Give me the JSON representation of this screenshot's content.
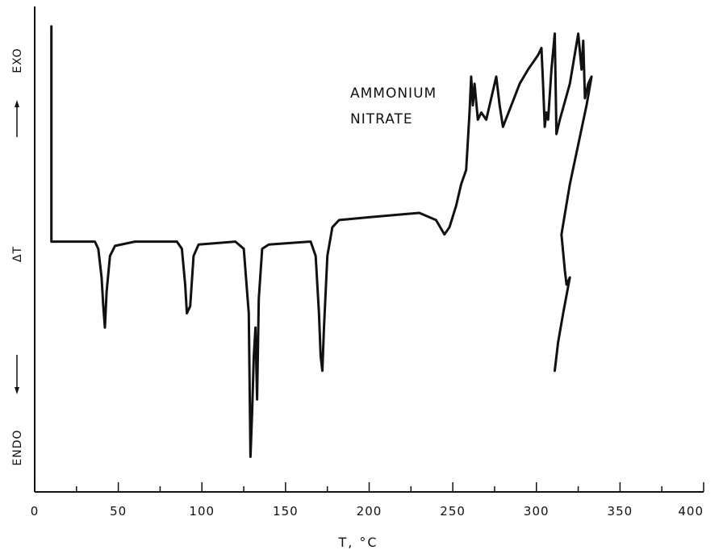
{
  "chart_data": {
    "type": "line",
    "xlabel": "T, °C",
    "ylabel": "ΔT",
    "ylabel_top": "EXO",
    "ylabel_bottom": "ENDO",
    "annotation": [
      "AMMONIUM",
      "NITRATE"
    ],
    "xlim": [
      0,
      400
    ],
    "x_ticks": [
      0,
      50,
      100,
      150,
      200,
      250,
      300,
      350,
      400
    ],
    "tick_labels": [
      "0",
      "50",
      "100",
      "150",
      "200",
      "250",
      "300",
      "350",
      "400"
    ],
    "ylim": [
      -1.7,
      1.6
    ],
    "grid": false,
    "series": [
      {
        "points": [
          [
            10,
            1.5
          ],
          [
            10,
            0
          ],
          [
            28,
            0
          ],
          [
            36,
            0
          ],
          [
            38,
            -0.05
          ],
          [
            40,
            -0.25
          ],
          [
            41,
            -0.45
          ],
          [
            42,
            -0.6
          ],
          [
            43,
            -0.35
          ],
          [
            45,
            -0.1
          ],
          [
            48,
            -0.03
          ],
          [
            60,
            0
          ],
          [
            85,
            0
          ],
          [
            88,
            -0.05
          ],
          [
            90,
            -0.3
          ],
          [
            91,
            -0.5
          ],
          [
            93,
            -0.45
          ],
          [
            95,
            -0.1
          ],
          [
            98,
            -0.02
          ],
          [
            120,
            0
          ],
          [
            125,
            -0.05
          ],
          [
            128,
            -0.5
          ],
          [
            129,
            -1.5
          ],
          [
            130,
            -1.2
          ],
          [
            131,
            -0.8
          ],
          [
            132,
            -0.6
          ],
          [
            133,
            -1.1
          ],
          [
            134,
            -0.4
          ],
          [
            136,
            -0.05
          ],
          [
            140,
            -0.02
          ],
          [
            165,
            0
          ],
          [
            168,
            -0.1
          ],
          [
            170,
            -0.5
          ],
          [
            171,
            -0.8
          ],
          [
            172,
            -0.9
          ],
          [
            173,
            -0.6
          ],
          [
            175,
            -0.1
          ],
          [
            178,
            0.1
          ],
          [
            182,
            0.15
          ],
          [
            200,
            0.17
          ],
          [
            230,
            0.2
          ],
          [
            240,
            0.15
          ],
          [
            245,
            0.05
          ],
          [
            248,
            0.1
          ],
          [
            252,
            0.25
          ],
          [
            255,
            0.4
          ],
          [
            258,
            0.5
          ],
          [
            260,
            0.9
          ],
          [
            261,
            1.15
          ],
          [
            262,
            0.95
          ],
          [
            263,
            1.1
          ],
          [
            265,
            0.85
          ],
          [
            267,
            0.9
          ],
          [
            270,
            0.85
          ],
          [
            273,
            1.0
          ],
          [
            276,
            1.15
          ],
          [
            278,
            0.95
          ],
          [
            280,
            0.8
          ],
          [
            285,
            0.95
          ],
          [
            290,
            1.1
          ],
          [
            295,
            1.2
          ],
          [
            298,
            1.25
          ],
          [
            301,
            1.3
          ],
          [
            303,
            1.35
          ],
          [
            304,
            1.1
          ],
          [
            305,
            0.8
          ],
          [
            306,
            0.9
          ],
          [
            307,
            0.85
          ],
          [
            309,
            1.2
          ],
          [
            311,
            1.45
          ],
          [
            312,
            0.75
          ],
          [
            314,
            0.85
          ],
          [
            320,
            1.1
          ],
          [
            325,
            1.45
          ],
          [
            327,
            1.2
          ],
          [
            328,
            1.4
          ],
          [
            329,
            1.0
          ],
          [
            331,
            1.1
          ],
          [
            333,
            1.15
          ],
          [
            330,
            0.95
          ],
          [
            320,
            0.4
          ],
          [
            315,
            0.05
          ],
          [
            317,
            -0.2
          ],
          [
            318,
            -0.3
          ],
          [
            320,
            -0.25
          ],
          [
            316,
            -0.5
          ],
          [
            313,
            -0.7
          ],
          [
            311,
            -0.9
          ]
        ]
      }
    ]
  }
}
